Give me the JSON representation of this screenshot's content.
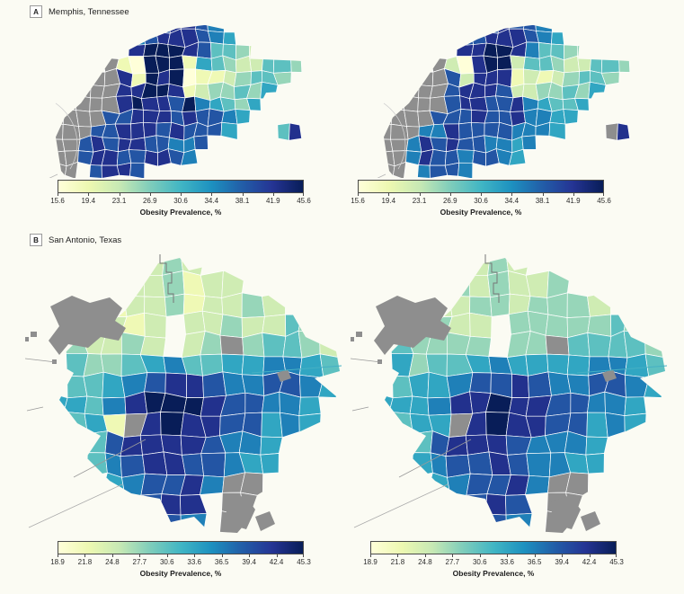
{
  "panels": [
    {
      "label": "A",
      "title": "Memphis, Tennessee",
      "legend": {
        "ticks": [
          "15.6",
          "19.4",
          "23.1",
          "26.9",
          "30.6",
          "34.4",
          "38.1",
          "41.9",
          "45.6"
        ],
        "caption": "Obesity Prevalence, %"
      },
      "maps": [
        {
          "name": "memphis-left",
          "grid": [
            ".........778876.........",
            "........67888765........",
            "........89998744322332..",
            "......g10999154322443...",
            "....ggg8198901123443....",
            "...gggg889981233435.....",
            "..ggggg89887965435......",
            "..gggg77888787765.......",
            ".gggg77888787775...48...",
            "gggg7878877667..........",
            "gggg788778876...........",
            ".ggg.7887..............."
          ]
        },
        {
          "name": "memphis-right",
          "grid": [
            ".........778776.........",
            "........77888765........",
            "........88998644332332..",
            "......g20899244322443...",
            "....ggg7288812123443....",
            "...gggg788872233435.....",
            "..ggggg78877865445......",
            "..gggg77787786655.......",
            ".gggg66877776665...g8...",
            "gggg6878776656..........",
            "gggg687767765...........",
            ".ggg.6776..............."
          ]
        }
      ]
    },
    {
      "label": "B",
      "title": "San Antonio, Texas",
      "legend": {
        "ticks": [
          "18.9",
          "21.8",
          "24.8",
          "27.7",
          "30.6",
          "33.6",
          "36.5",
          "39.4",
          "42.4",
          "45.3"
        ],
        "caption": "Obesity Prevalence, %"
      },
      "maps": [
        {
          "name": "sanantonio-left",
          "grid": [
            "......232.......",
            ".....223122.....",
            ".gg.122312232...",
            ".gg2212.2232243.",
            "..32232.23g34432",
            "..43345644556654",
            "..44567887667765",
            ".55468999877665.",
            ".4451g898877565.",
            "..44788887665...",
            "...4678877655...",
            "....567786gg....",
            "......788.gg....",
            "......676.g....."
          ]
        },
        {
          "name": "sanantonio-right",
          "grid": [
            "......232.......",
            ".....323223.....",
            ".gg.223323332...",
            ".gg3322.3333343.",
            "..43333.33g44443",
            "..53445655556654",
            "..45567787667765",
            ".55568898877665.",
            ".4455g898877565.",
            "..44788876665...",
            "...5677876655...",
            "....567786gg....",
            "......787.gg....",
            "......676.g....."
          ]
        }
      ]
    }
  ],
  "colors": {
    "colormap": [
      [
        0.0,
        "#ffffd9"
      ],
      [
        0.125,
        "#edf8b1"
      ],
      [
        0.25,
        "#c7e9b4"
      ],
      [
        0.375,
        "#7fcdbb"
      ],
      [
        0.5,
        "#41b6c4"
      ],
      [
        0.625,
        "#1d91c0"
      ],
      [
        0.75,
        "#225ea8"
      ],
      [
        0.875,
        "#253494"
      ],
      [
        1.0,
        "#081d58"
      ]
    ],
    "nodata": "#8e8e8e",
    "tract_border": "#ffffff",
    "background": "#fbfbf3"
  },
  "chart_data": [
    {
      "type": "heatmap",
      "subtype": "choropleth-map",
      "panel": "A",
      "title": "Memphis, Tennessee",
      "variable": "Obesity Prevalence, %",
      "map_count": 2,
      "scale_ticks": [
        15.6,
        19.4,
        23.1,
        26.9,
        30.6,
        34.4,
        38.1,
        41.9,
        45.6
      ],
      "scale_range": [
        15.6,
        45.6
      ],
      "colormap": "YlGnBu (pale yellow = low, dark navy = high)",
      "nodata_color_meaning": "gray = no data / excluded area"
    },
    {
      "type": "heatmap",
      "subtype": "choropleth-map",
      "panel": "B",
      "title": "San Antonio, Texas",
      "variable": "Obesity Prevalence, %",
      "map_count": 2,
      "scale_ticks": [
        18.9,
        21.8,
        24.8,
        27.7,
        30.6,
        33.6,
        36.5,
        39.4,
        42.4,
        45.3
      ],
      "scale_range": [
        18.9,
        45.3
      ],
      "colormap": "YlGnBu (pale yellow = low, dark navy = high)",
      "nodata_color_meaning": "gray = no data / excluded area"
    }
  ]
}
